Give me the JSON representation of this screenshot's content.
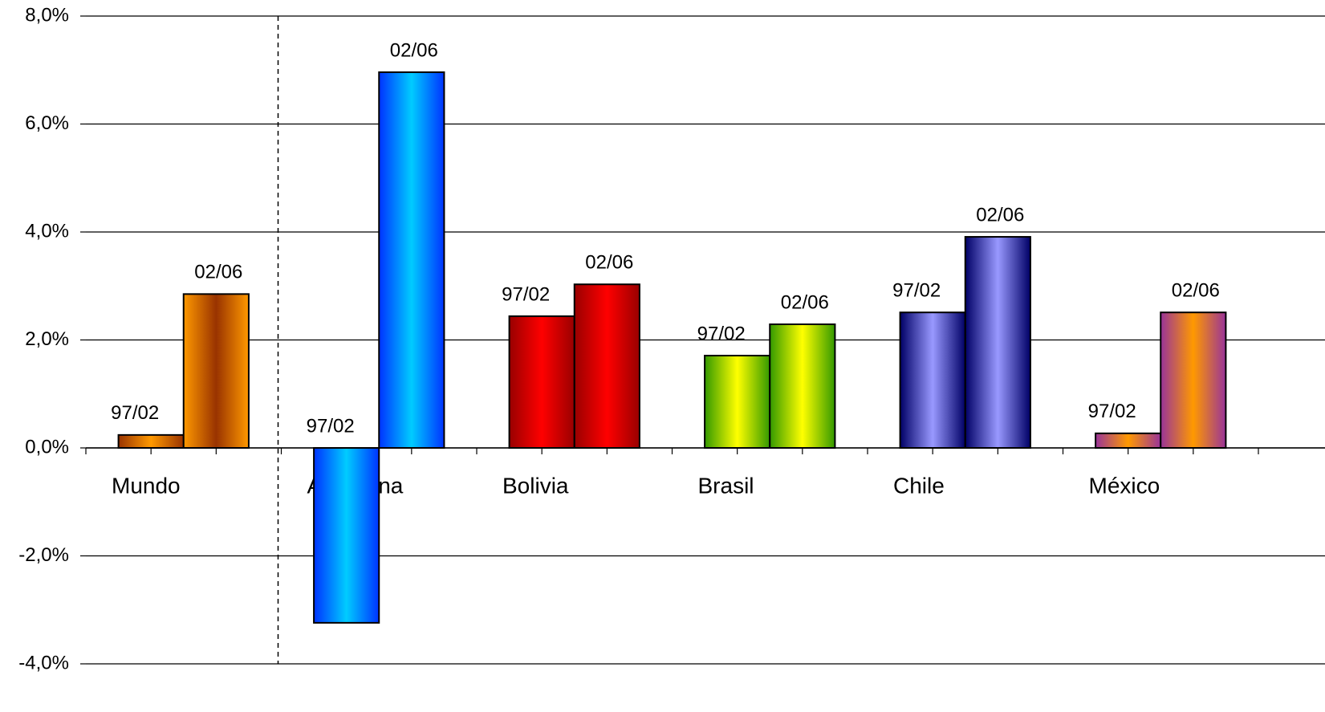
{
  "chart_data": {
    "type": "bar",
    "categories": [
      "Mundo",
      "Argentina",
      "Bolivia",
      "Brasil",
      "Chile",
      "México"
    ],
    "series": [
      {
        "name": "97/02",
        "values": [
          0.24,
          -3.24,
          2.44,
          1.71,
          2.51,
          0.27
        ],
        "colors": [
          [
            "#993300",
            "#ff9900"
          ],
          [
            "#0033ff",
            "#00ccff"
          ],
          [
            "#990000",
            "#ff0000"
          ],
          [
            "#339900",
            "#ffff00"
          ],
          [
            "#000066",
            "#9999ff"
          ],
          [
            "#993399",
            "#ff9900"
          ]
        ]
      },
      {
        "name": "02/06",
        "values": [
          2.85,
          6.96,
          3.03,
          2.29,
          3.91,
          2.51
        ],
        "colors": [
          [
            "#ff9900",
            "#993300"
          ],
          [
            "#0033ff",
            "#00ccff"
          ],
          [
            "#990000",
            "#ff0000"
          ],
          [
            "#339900",
            "#ffff00"
          ],
          [
            "#000066",
            "#9999ff"
          ],
          [
            "#993399",
            "#ff9900"
          ]
        ]
      }
    ],
    "ylim": [
      -4,
      8
    ],
    "yticks": [
      {
        "value": -4,
        "label": "-4,0%"
      },
      {
        "value": -2,
        "label": "-2,0%"
      },
      {
        "value": 0,
        "label": "0,0%"
      },
      {
        "value": 2,
        "label": "2,0%"
      },
      {
        "value": 4,
        "label": "4,0%"
      },
      {
        "value": 6,
        "label": "6,0%"
      },
      {
        "value": 8,
        "label": "8,0%"
      }
    ],
    "grid": true
  }
}
